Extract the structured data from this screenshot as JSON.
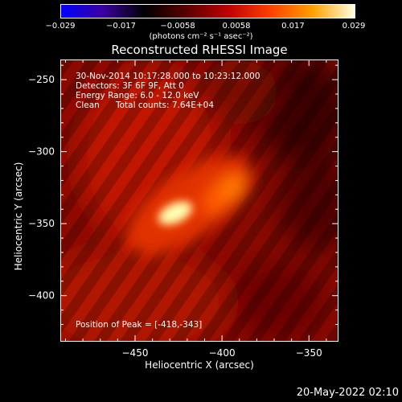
{
  "colorbar": {
    "ticks": [
      "−0.029",
      "−0.017",
      "−0.0058",
      "0.0058",
      "0.017",
      "0.029"
    ],
    "values": [
      -0.029,
      -0.017,
      -0.0058,
      0.0058,
      0.017,
      0.029
    ],
    "unit_label": "(photons cm⁻² s⁻¹ asec⁻²)",
    "colormap": [
      "#0000ff",
      "#3a00a0",
      "#000000",
      "#5a0000",
      "#c00000",
      "#ff4000",
      "#ffa000",
      "#ffffe0"
    ]
  },
  "chart_data": {
    "type": "heatmap",
    "title": "Reconstructed RHESSI Image",
    "xlabel": "Heliocentric X (arcsec)",
    "ylabel": "Heliocentric Y (arcsec)",
    "xlim": [
      -500,
      -380
    ],
    "ylim": [
      -428,
      -238
    ],
    "xlim_arcsec": [
      -493,
      -413
    ],
    "ylim_arcsec": [
      -432,
      -236
    ],
    "x_ticks": [
      -450,
      -400,
      -350
    ],
    "y_ticks": [
      -250,
      -300,
      -350,
      -400
    ],
    "peak": {
      "x": -418,
      "y": -343
    },
    "annotations": {
      "time_range": "30-Nov-2014 10:17:28.000 to 10:23:12.000",
      "detectors": "Detectors: 3F 6F 9F, Att 0",
      "energy": "Energy Range: 6.0 - 12.0 keV",
      "method": "Clean",
      "counts": "Total counts: 7.64E+04",
      "peak_text": "Position of Peak = [-418,-343]"
    }
  },
  "footer": {
    "date": "20-May-2022 02:10"
  }
}
